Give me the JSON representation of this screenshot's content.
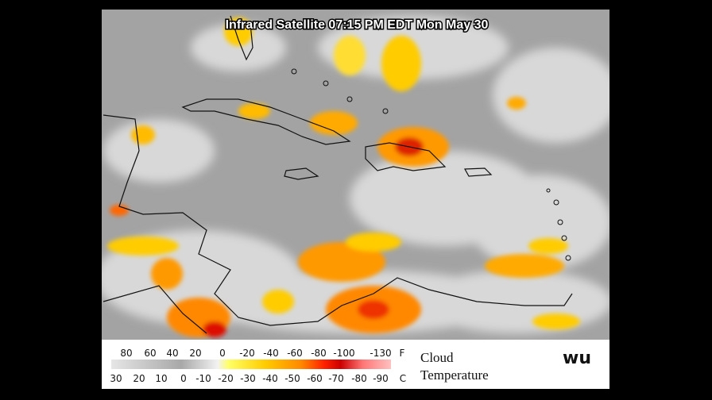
{
  "title": "Infrared Satellite 07:15 PM EDT Mon May 30",
  "legend": {
    "fahrenheit": {
      "labels": [
        "80",
        "60",
        "40",
        "20",
        "0",
        "-20",
        "-40",
        "-60",
        "-80",
        "-100",
        "-130"
      ],
      "unit": "F"
    },
    "celsius": {
      "labels": [
        "30",
        "20",
        "10",
        "0",
        "-10",
        "-20",
        "-30",
        "-40",
        "-50",
        "-60",
        "-70",
        "-80",
        "-90"
      ],
      "unit": "C"
    },
    "caption": [
      "Cloud",
      "Temperature"
    ]
  },
  "logo": "wu"
}
